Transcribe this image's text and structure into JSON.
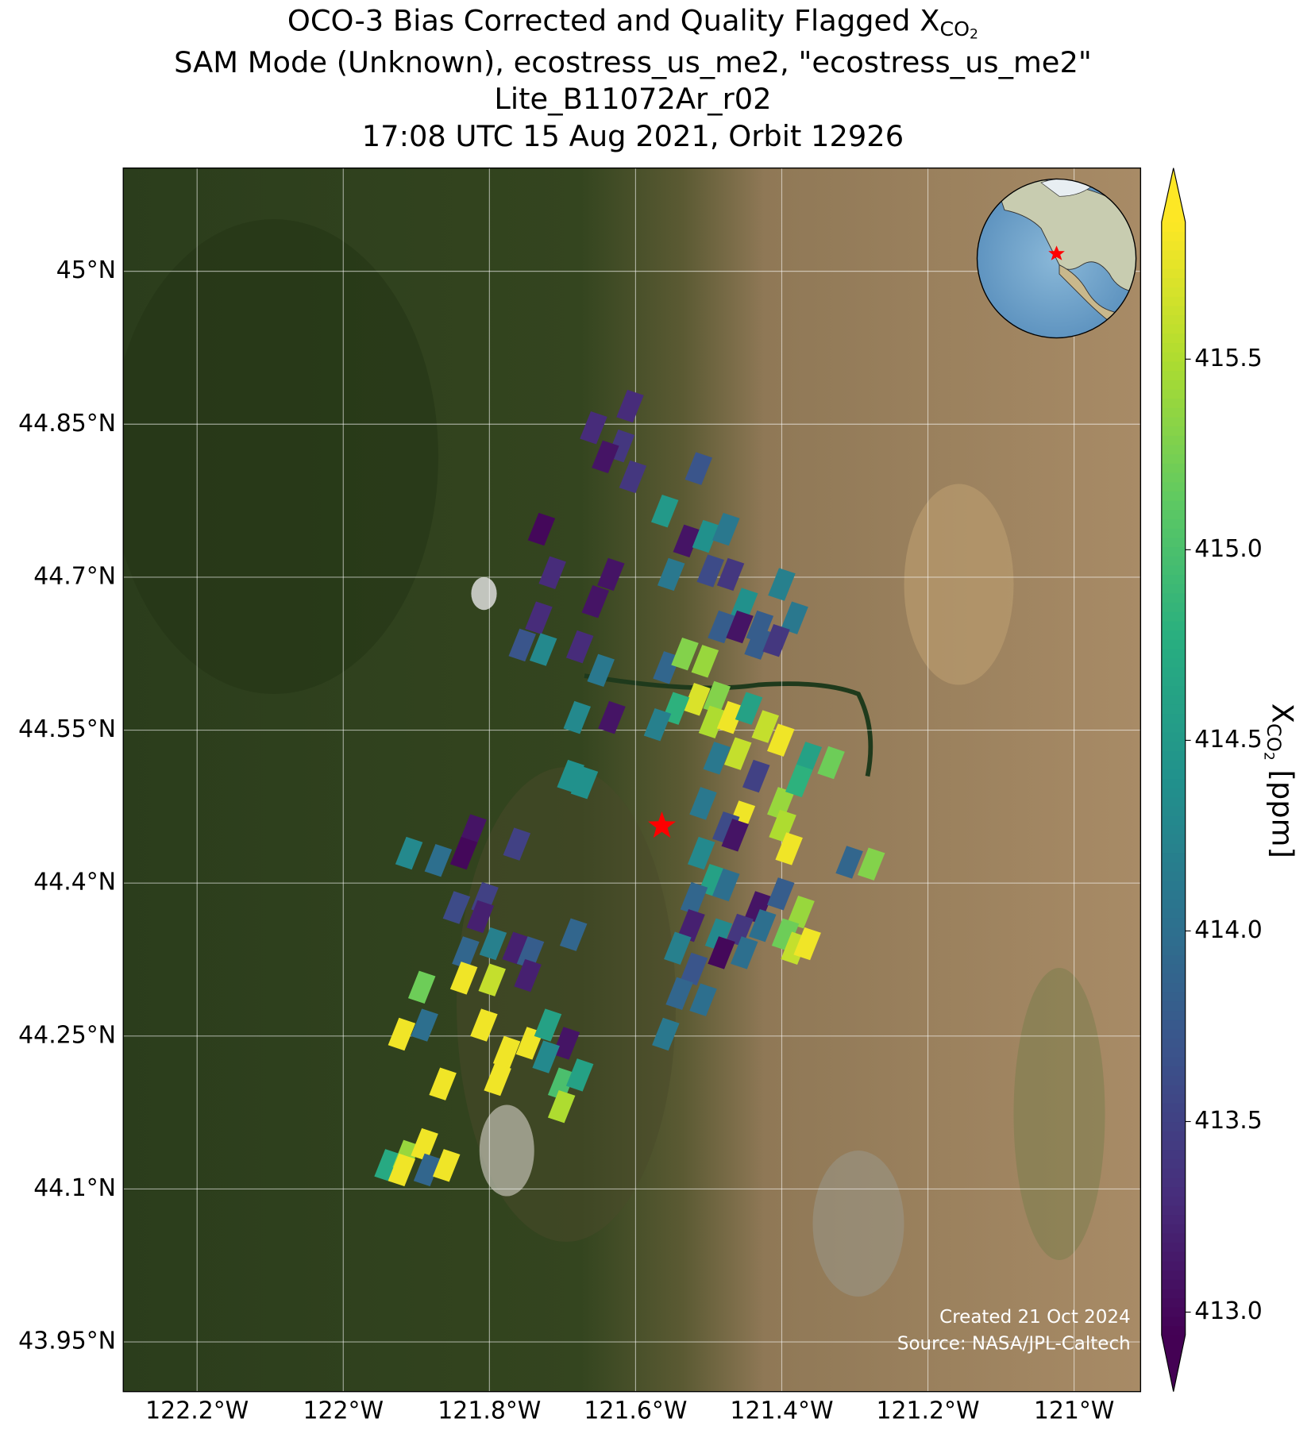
{
  "chart_data": {
    "type": "map",
    "title_lines": [
      "OCO-3 Bias Corrected and Quality Flagged X",
      "SAM Mode (Unknown), ecostress_us_me2, \"ecostress_us_me2\"",
      "Lite_B11072Ar_r02",
      "17:08 UTC 15 Aug 2021, Orbit 12926"
    ],
    "variable": {
      "base": "X",
      "sub": "CO",
      "subsub": "2"
    },
    "units": "[ppm]",
    "xlim": [
      -122.301,
      -120.909
    ],
    "ylim": [
      43.9013,
      45.1012
    ],
    "xticks": [
      {
        "value": -122.2,
        "label": "122.2°W"
      },
      {
        "value": -122.0,
        "label": "122°W"
      },
      {
        "value": -121.8,
        "label": "121.8°W"
      },
      {
        "value": -121.6,
        "label": "121.6°W"
      },
      {
        "value": -121.4,
        "label": "121.4°W"
      },
      {
        "value": -121.2,
        "label": "121.2°W"
      },
      {
        "value": -121.0,
        "label": "121°W"
      }
    ],
    "yticks": [
      {
        "value": 45,
        "label": "45°N"
      },
      {
        "value": 44.85,
        "label": "44.85°N"
      },
      {
        "value": 44.7,
        "label": "44.7°N"
      },
      {
        "value": 44.55,
        "label": "44.55°N"
      },
      {
        "value": 44.4,
        "label": "44.4°N"
      },
      {
        "value": 44.25,
        "label": "44.25°N"
      },
      {
        "value": 44.1,
        "label": "44.1°N"
      },
      {
        "value": 43.95,
        "label": "43.95°N"
      }
    ],
    "grid": true,
    "clim": [
      412.94,
      415.86
    ],
    "cticks": [
      {
        "value": 413.0,
        "label": "413.0"
      },
      {
        "value": 413.5,
        "label": "413.5"
      },
      {
        "value": 414.0,
        "label": "414.0"
      },
      {
        "value": 414.5,
        "label": "414.5"
      },
      {
        "value": 415.0,
        "label": "415.0"
      },
      {
        "value": 415.5,
        "label": "415.5"
      }
    ],
    "colormap": "viridis",
    "target": {
      "lon": -121.564,
      "lat": 44.456,
      "color": "#ff0000"
    },
    "footprints": {
      "lon": [
        -121.6075,
        -121.6575,
        -121.62,
        -121.6413,
        -121.6038,
        -121.5138,
        -121.56,
        -121.7288,
        -121.53,
        -121.5038,
        -121.4763,
        -121.7138,
        -121.6338,
        -121.5513,
        -121.4975,
        -121.47,
        -121.4,
        -121.655,
        -121.7325,
        -121.4513,
        -121.4825,
        -121.4575,
        -121.3825,
        -121.755,
        -121.7263,
        -121.6763,
        -121.6475,
        -121.5575,
        -121.5325,
        -121.505,
        -121.4325,
        -121.4075,
        -121.43,
        -121.5163,
        -121.4888,
        -121.545,
        -121.57,
        -121.68,
        -121.6325,
        -121.495,
        -121.47,
        -121.445,
        -121.46,
        -121.4225,
        -121.4013,
        -121.4888,
        -121.435,
        -121.3638,
        -121.3325,
        -121.6888,
        -121.67,
        -121.5075,
        -121.4013,
        -121.3763,
        -121.455,
        -121.4763,
        -121.4638,
        -121.3988,
        -121.39,
        -121.8225,
        -121.91,
        -121.835,
        -121.7625,
        -121.87,
        -121.51,
        -121.3075,
        -121.2775,
        -121.495,
        -121.845,
        -121.8063,
        -121.52,
        -121.4763,
        -121.8125,
        -121.4325,
        -121.4013,
        -121.3738,
        -121.5238,
        -121.4863,
        -121.4575,
        -121.4263,
        -121.395,
        -121.5425,
        -121.4825,
        -121.4513,
        -121.3825,
        -121.365,
        -121.685,
        -121.795,
        -121.7638,
        -121.8325,
        -121.7438,
        -121.835,
        -121.7963,
        -121.7475,
        -121.52,
        -121.54,
        -121.8925,
        -121.5075,
        -121.92,
        -121.8888,
        -121.8075,
        -121.7763,
        -121.745,
        -121.72,
        -121.695,
        -121.7888,
        -121.7225,
        -121.5588,
        -121.7013,
        -121.6763,
        -121.8638,
        -121.7013,
        -121.9388,
        -121.9138,
        -121.8888,
        -121.885,
        -121.8588,
        -121.92
      ],
      "lat": [
        44.8677,
        44.8465,
        44.8287,
        44.818,
        44.7985,
        44.8065,
        44.7648,
        44.747,
        44.7355,
        44.74,
        44.747,
        44.7044,
        44.7027,
        44.7027,
        44.7062,
        44.7027,
        44.6929,
        44.676,
        44.6601,
        44.6734,
        44.6512,
        44.6512,
        44.6601,
        44.6334,
        44.629,
        44.6317,
        44.6086,
        44.6113,
        44.6246,
        44.6175,
        44.6352,
        44.6379,
        44.6512,
        44.5802,
        44.582,
        44.5713,
        44.5553,
        44.5624,
        44.5624,
        44.558,
        44.5624,
        44.5713,
        44.5269,
        44.5535,
        44.5402,
        44.5225,
        44.5048,
        44.5225,
        44.5181,
        44.5048,
        44.4985,
        44.4781,
        44.4781,
        44.5003,
        44.4648,
        44.4541,
        44.447,
        44.4559,
        44.4337,
        44.4515,
        44.4293,
        44.4293,
        44.4382,
        44.4222,
        44.4293,
        44.4204,
        44.4187,
        44.4027,
        44.376,
        44.3849,
        44.3849,
        44.3982,
        44.3671,
        44.376,
        44.3894,
        44.3716,
        44.3583,
        44.3494,
        44.3539,
        44.3583,
        44.3494,
        44.3361,
        44.3317,
        44.3317,
        44.3361,
        44.3405,
        44.3494,
        44.3405,
        44.3361,
        44.3317,
        44.3317,
        44.3068,
        44.305,
        44.3094,
        44.3157,
        44.2917,
        44.2979,
        44.2855,
        44.2518,
        44.2607,
        44.2607,
        44.234,
        44.2429,
        44.2607,
        44.2429,
        44.2074,
        44.2296,
        44.2518,
        44.203,
        44.2118,
        44.203,
        44.1808,
        44.1231,
        44.132,
        44.1435,
        44.1187,
        44.1231,
        44.1187
      ],
      "values": [
        413.3,
        413.3,
        413.4,
        413.1,
        413.4,
        413.7,
        414.5,
        413.0,
        413.1,
        414.4,
        414.1,
        413.3,
        413.1,
        414.1,
        413.6,
        413.4,
        414.2,
        413.1,
        413.3,
        414.4,
        413.8,
        413.1,
        414.1,
        413.7,
        414.3,
        413.3,
        414.1,
        413.9,
        415.3,
        415.4,
        413.8,
        413.4,
        413.8,
        415.7,
        415.3,
        414.8,
        414.2,
        414.3,
        413.1,
        415.5,
        415.8,
        414.6,
        415.6,
        415.6,
        415.8,
        414.1,
        413.5,
        414.6,
        415.2,
        414.4,
        414.4,
        414.1,
        415.4,
        414.8,
        415.8,
        413.6,
        413.1,
        415.5,
        415.8,
        413.1,
        414.3,
        413.0,
        413.5,
        414.0,
        414.3,
        413.9,
        415.3,
        414.6,
        413.6,
        413.5,
        413.9,
        414.0,
        413.2,
        413.1,
        413.8,
        415.4,
        413.2,
        414.3,
        413.4,
        414.0,
        415.2,
        414.2,
        413.0,
        414.0,
        415.6,
        415.8,
        413.9,
        414.2,
        413.2,
        413.9,
        413.8,
        415.8,
        415.6,
        413.2,
        413.7,
        413.9,
        415.2,
        414.0,
        415.8,
        414.0,
        415.8,
        415.8,
        415.8,
        414.6,
        413.1,
        415.8,
        414.3,
        414.1,
        415.0,
        414.6,
        415.8,
        415.5,
        414.7,
        415.4,
        415.8,
        413.9,
        415.8,
        415.8
      ]
    },
    "footer": [
      "Created 21 Oct 2024",
      "Source: NASA/JPL-Caltech"
    ]
  }
}
